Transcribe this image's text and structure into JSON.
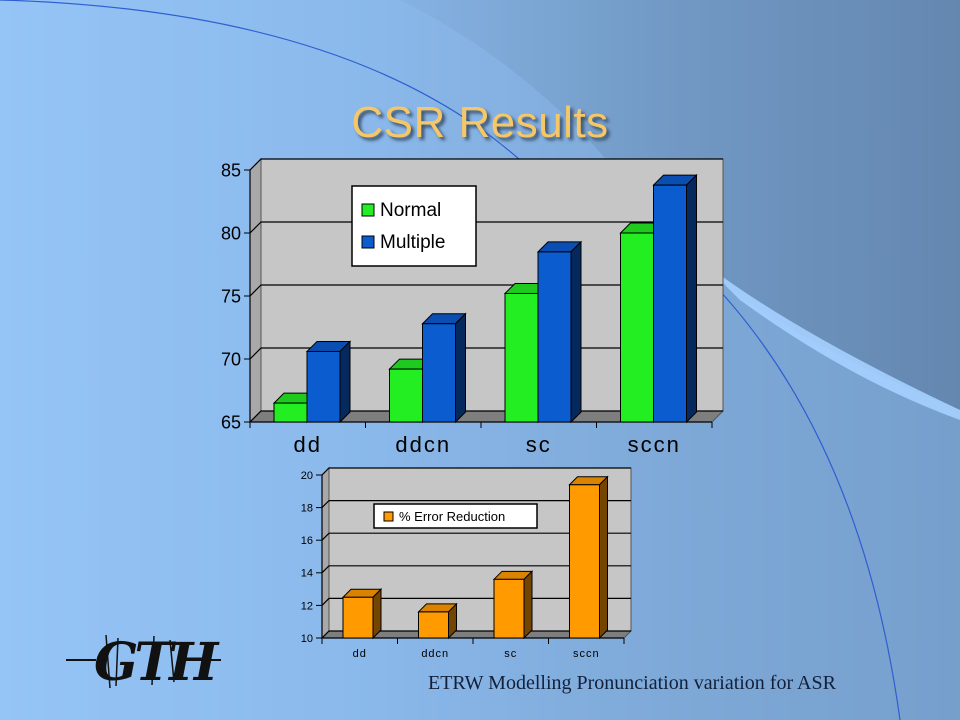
{
  "slide": {
    "title": "CSR Results",
    "footer": "ETRW  Modelling Pronunciation variation for ASR",
    "logo_text": "GTH"
  },
  "colors": {
    "normal": "#22ee22",
    "multiple": "#0b5ccf",
    "error_reduction": "#ff9a00",
    "title": "#f6c766"
  },
  "chart_data": [
    {
      "type": "bar",
      "categories": [
        "dd",
        "ddcn",
        "sc",
        "sccn"
      ],
      "series": [
        {
          "name": "Normal",
          "values": [
            66.5,
            69.2,
            75.2,
            80.0
          ]
        },
        {
          "name": "Multiple",
          "values": [
            70.6,
            72.8,
            78.5,
            83.8
          ]
        }
      ],
      "ylim": [
        65,
        85
      ],
      "yticks": [
        "65",
        "70",
        "75",
        "80",
        "85"
      ],
      "grid": true,
      "legend": "top-left",
      "style": "3d-clustered"
    },
    {
      "type": "bar",
      "categories": [
        "dd",
        "ddcn",
        "sc",
        "sccn"
      ],
      "series": [
        {
          "name": "% Error Reduction",
          "values": [
            12.5,
            11.6,
            13.6,
            19.4
          ]
        }
      ],
      "ylim": [
        10,
        20
      ],
      "yticks": [
        "10",
        "12",
        "14",
        "16",
        "18",
        "20"
      ],
      "grid": true,
      "legend": "top-center",
      "style": "3d-column"
    }
  ]
}
